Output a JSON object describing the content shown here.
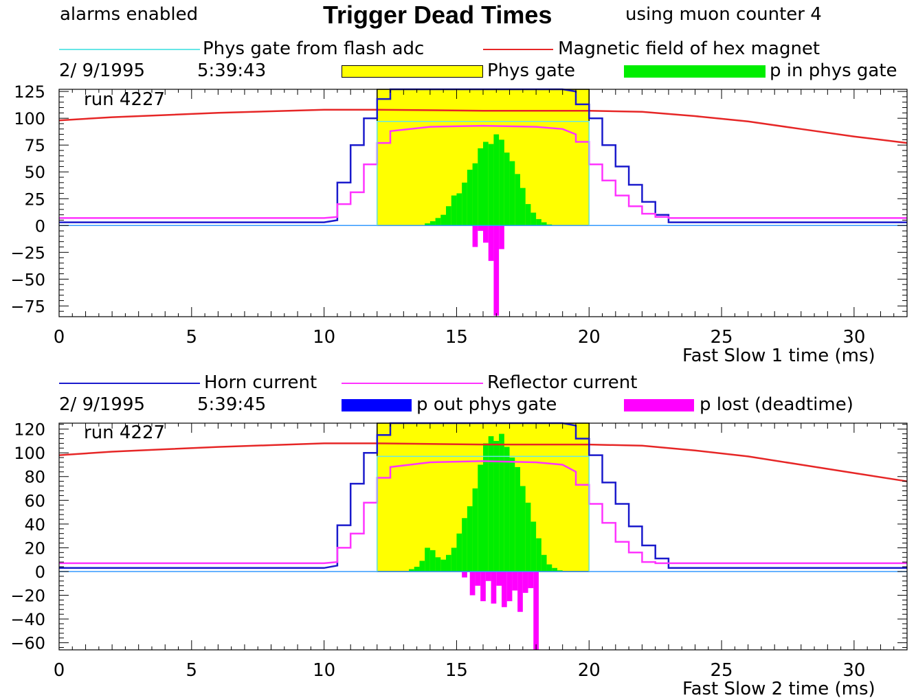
{
  "header": {
    "alarms": "alarms enabled",
    "title": "Trigger Dead Times",
    "counter": "using muon counter 4"
  },
  "panel1": {
    "legend_line1": {
      "label": "Phys gate from flash adc",
      "color": "#66e6e6"
    },
    "legend_line2": {
      "label": "Magnetic field of hex magnet",
      "color": "#e62626"
    },
    "date": "2/ 9/1995",
    "time": "5:39:43",
    "legend_box1": {
      "label": "Phys gate",
      "color": "#ffff00"
    },
    "legend_box2": {
      "label": "p in phys gate",
      "color": "#00ee00"
    },
    "run": "run 4227",
    "xlabel": "Fast Slow 1  time (ms)"
  },
  "panel2": {
    "legend_line1": {
      "label": "Horn current",
      "color": "#1a1acc"
    },
    "legend_line2": {
      "label": "Reflector current",
      "color": "#ff33ff"
    },
    "date": "2/ 9/1995",
    "time": "5:39:45",
    "legend_box1": {
      "label": "p out phys gate",
      "color": "#0000ff"
    },
    "legend_box2": {
      "label": "p lost (deadtime)",
      "color": "#ff00ff"
    },
    "run": "run 4227",
    "xlabel": "Fast Slow 2  time (ms)"
  },
  "chart_data": [
    {
      "type": "line",
      "xlim": [
        0,
        32
      ],
      "ylim": [
        -85,
        127
      ],
      "xticks": [
        "0",
        "5",
        "10",
        "15",
        "20",
        "25",
        "30"
      ],
      "yticks": [
        "125",
        "100",
        "75",
        "50",
        "25",
        "0",
        "−25",
        "−50",
        "−75"
      ],
      "ytick_values": [
        125,
        100,
        75,
        50,
        25,
        0,
        -25,
        -50,
        -75
      ],
      "phys_gate": [
        12,
        20
      ],
      "series": [
        {
          "name": "Magnetic field of hex magnet",
          "color": "#e62626",
          "points": [
            [
              0,
              98
            ],
            [
              2,
              101
            ],
            [
              4,
              103
            ],
            [
              6,
              105
            ],
            [
              8,
              106.5
            ],
            [
              10,
              108
            ],
            [
              12,
              108
            ],
            [
              16,
              107
            ],
            [
              20,
              107
            ],
            [
              22,
              106
            ],
            [
              24,
              102
            ],
            [
              26,
              97
            ],
            [
              28,
              90
            ],
            [
              30,
              83
            ],
            [
              32,
              77
            ]
          ]
        },
        {
          "name": "Horn current",
          "color": "#1a1acc",
          "points": [
            [
              0,
              3
            ],
            [
              10,
              3
            ],
            [
              10.5,
              5
            ],
            [
              10.5,
              40
            ],
            [
              11,
              40
            ],
            [
              11,
              75
            ],
            [
              11.5,
              75
            ],
            [
              11.5,
              100
            ],
            [
              12,
              100
            ],
            [
              12,
              118
            ],
            [
              12.5,
              118
            ],
            [
              12.5,
              127
            ],
            [
              19,
              127
            ],
            [
              19.5,
              125
            ],
            [
              19.5,
              113
            ],
            [
              20,
              113
            ],
            [
              20,
              100
            ],
            [
              20.5,
              100
            ],
            [
              20.5,
              75
            ],
            [
              21,
              75
            ],
            [
              21,
              55
            ],
            [
              21.5,
              55
            ],
            [
              21.5,
              38
            ],
            [
              22,
              38
            ],
            [
              22,
              22
            ],
            [
              22.5,
              22
            ],
            [
              22.5,
              10
            ],
            [
              23,
              10
            ],
            [
              23,
              3
            ],
            [
              32,
              3
            ]
          ]
        },
        {
          "name": "Reflector current",
          "color": "#ff33ff",
          "points": [
            [
              0,
              7
            ],
            [
              10,
              7
            ],
            [
              10.5,
              8
            ],
            [
              10.5,
              20
            ],
            [
              11,
              20
            ],
            [
              11,
              31
            ],
            [
              11.5,
              31
            ],
            [
              11.5,
              57
            ],
            [
              12,
              57
            ],
            [
              12,
              77
            ],
            [
              12.5,
              77
            ],
            [
              12.5,
              88
            ],
            [
              14,
              92
            ],
            [
              16,
              93
            ],
            [
              18,
              92
            ],
            [
              19,
              90
            ],
            [
              19.5,
              85
            ],
            [
              19.5,
              78
            ],
            [
              20,
              78
            ],
            [
              20,
              57
            ],
            [
              20.5,
              57
            ],
            [
              20.5,
              42
            ],
            [
              21,
              42
            ],
            [
              21,
              28
            ],
            [
              21.5,
              28
            ],
            [
              21.5,
              18
            ],
            [
              22,
              18
            ],
            [
              22,
              11
            ],
            [
              22.5,
              11
            ],
            [
              22.5,
              8
            ],
            [
              23,
              8
            ],
            [
              23,
              7
            ],
            [
              32,
              7
            ]
          ]
        },
        {
          "name": "Phys gate from flash adc",
          "color": "#66e6e6",
          "points": [
            [
              12,
              0
            ],
            [
              12,
              97
            ],
            [
              20,
              97
            ],
            [
              20,
              0
            ]
          ]
        }
      ],
      "positive_bars": {
        "name": "p in phys gate",
        "color": "#00ee00",
        "x": [
          13.9,
          14.1,
          14.3,
          14.5,
          14.7,
          14.9,
          15.1,
          15.3,
          15.5,
          15.7,
          15.9,
          16.1,
          16.3,
          16.5,
          16.7,
          16.9,
          17.1,
          17.3,
          17.5,
          17.7,
          17.9,
          18.1,
          18.3,
          18.5
        ],
        "values": [
          2,
          4,
          7,
          10,
          18,
          28,
          30,
          40,
          52,
          58,
          72,
          78,
          76,
          85,
          80,
          68,
          60,
          48,
          35,
          20,
          12,
          6,
          3,
          1
        ]
      },
      "negative_bars": {
        "name": "p lost (deadtime)",
        "color": "#ff00ff",
        "x": [
          15.7,
          15.9,
          16.1,
          16.3,
          16.5,
          16.7
        ],
        "values": [
          -20,
          -5,
          -16,
          -33,
          -84,
          -22
        ]
      }
    },
    {
      "type": "line",
      "xlim": [
        0,
        32
      ],
      "ylim": [
        -66,
        125
      ],
      "xticks": [
        "0",
        "5",
        "10",
        "15",
        "20",
        "25",
        "30"
      ],
      "yticks": [
        "120",
        "100",
        "80",
        "60",
        "40",
        "20",
        "0",
        "−20",
        "−40",
        "−60"
      ],
      "ytick_values": [
        120,
        100,
        80,
        60,
        40,
        20,
        0,
        -20,
        -40,
        -60
      ],
      "phys_gate": [
        12,
        20
      ],
      "series": [
        {
          "name": "Magnetic field of hex magnet",
          "color": "#e62626",
          "points": [
            [
              0,
              98
            ],
            [
              2,
              101
            ],
            [
              4,
              103
            ],
            [
              6,
              105
            ],
            [
              8,
              106.5
            ],
            [
              10,
              108
            ],
            [
              12,
              108
            ],
            [
              16,
              107
            ],
            [
              20,
              107
            ],
            [
              22,
              106
            ],
            [
              24,
              102
            ],
            [
              26,
              97
            ],
            [
              28,
              90
            ],
            [
              30,
              83
            ],
            [
              32,
              76
            ]
          ]
        },
        {
          "name": "Horn current",
          "color": "#1a1acc",
          "points": [
            [
              0,
              3
            ],
            [
              10,
              3
            ],
            [
              10.5,
              5
            ],
            [
              10.5,
              39
            ],
            [
              11,
              39
            ],
            [
              11,
              74
            ],
            [
              11.5,
              74
            ],
            [
              11.5,
              100
            ],
            [
              12,
              100
            ],
            [
              12,
              115
            ],
            [
              12.5,
              115
            ],
            [
              12.5,
              125
            ],
            [
              19,
              125
            ],
            [
              19.5,
              123
            ],
            [
              19.5,
              112
            ],
            [
              20,
              112
            ],
            [
              20,
              98
            ],
            [
              20.5,
              98
            ],
            [
              20.5,
              75
            ],
            [
              21,
              75
            ],
            [
              21,
              57
            ],
            [
              21.5,
              57
            ],
            [
              21.5,
              38
            ],
            [
              22,
              38
            ],
            [
              22,
              22
            ],
            [
              22.5,
              22
            ],
            [
              22.5,
              11
            ],
            [
              23,
              11
            ],
            [
              23,
              3
            ],
            [
              32,
              3
            ]
          ]
        },
        {
          "name": "Reflector current",
          "color": "#ff33ff",
          "points": [
            [
              0,
              7
            ],
            [
              10,
              7
            ],
            [
              10.5,
              8
            ],
            [
              10.5,
              20
            ],
            [
              11,
              20
            ],
            [
              11,
              32
            ],
            [
              11.5,
              32
            ],
            [
              11.5,
              58
            ],
            [
              12,
              58
            ],
            [
              12,
              79
            ],
            [
              12.5,
              79
            ],
            [
              12.5,
              88
            ],
            [
              14,
              92
            ],
            [
              16,
              93
            ],
            [
              18,
              92
            ],
            [
              19,
              90
            ],
            [
              19.5,
              84
            ],
            [
              19.5,
              73
            ],
            [
              20,
              73
            ],
            [
              20,
              57
            ],
            [
              20.5,
              57
            ],
            [
              20.5,
              41
            ],
            [
              21,
              41
            ],
            [
              21,
              25
            ],
            [
              21.5,
              25
            ],
            [
              21.5,
              16
            ],
            [
              22,
              16
            ],
            [
              22,
              8
            ],
            [
              22.5,
              8
            ],
            [
              22.5,
              7
            ],
            [
              32,
              7
            ]
          ]
        },
        {
          "name": "Phys gate from flash adc",
          "color": "#66e6e6",
          "points": [
            [
              12,
              0
            ],
            [
              12,
              97
            ],
            [
              20,
              97
            ],
            [
              20,
              0
            ]
          ]
        }
      ],
      "positive_bars": {
        "name": "p in phys gate",
        "color": "#00ee00",
        "x": [
          13.3,
          13.5,
          13.7,
          13.9,
          14.1,
          14.3,
          14.5,
          14.7,
          14.9,
          15.1,
          15.3,
          15.5,
          15.7,
          15.9,
          16.1,
          16.3,
          16.5,
          16.7,
          16.9,
          17.1,
          17.3,
          17.5,
          17.7,
          17.9,
          18.1,
          18.3,
          18.5,
          18.7,
          18.9
        ],
        "values": [
          2,
          4,
          9,
          20,
          18,
          12,
          10,
          14,
          20,
          32,
          45,
          55,
          70,
          90,
          108,
          114,
          110,
          116,
          105,
          96,
          88,
          72,
          58,
          42,
          28,
          14,
          6,
          3,
          1
        ]
      },
      "negative_bars": {
        "name": "p lost (deadtime)",
        "color": "#ff00ff",
        "x": [
          15.3,
          15.6,
          15.8,
          16.0,
          16.2,
          16.4,
          16.6,
          16.8,
          17.0,
          17.2,
          17.4,
          17.6,
          17.8,
          18.0
        ],
        "values": [
          -5,
          -20,
          -12,
          -25,
          -8,
          -27,
          -12,
          -30,
          -25,
          -16,
          -34,
          -18,
          -14,
          -66
        ]
      }
    }
  ]
}
